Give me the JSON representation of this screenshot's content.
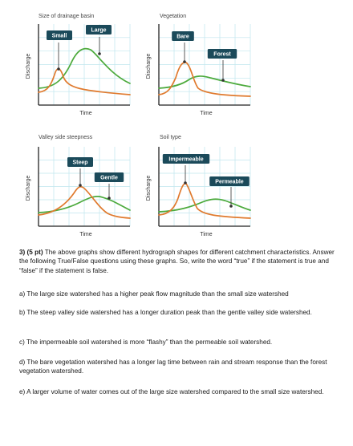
{
  "charts": [
    {
      "title": "Size of drainage basin",
      "xlabel": "Time",
      "ylabel": "Discharge",
      "labels": [
        {
          "text": "Small",
          "color": "#e07a2e"
        },
        {
          "text": "Large",
          "color": "#4caa3c"
        }
      ]
    },
    {
      "title": "Vegetation",
      "xlabel": "Time",
      "ylabel": "Discharge",
      "labels": [
        {
          "text": "Bare",
          "color": "#e07a2e"
        },
        {
          "text": "Forest",
          "color": "#4caa3c"
        }
      ]
    },
    {
      "title": "Valley side steepness",
      "xlabel": "Time",
      "ylabel": "Discharge",
      "labels": [
        {
          "text": "Steep",
          "color": "#e07a2e"
        },
        {
          "text": "Gentle",
          "color": "#4caa3c"
        }
      ]
    },
    {
      "title": "Soil type",
      "xlabel": "Time",
      "ylabel": "Discharge",
      "labels": [
        {
          "text": "Impermeable",
          "color": "#e07a2e"
        },
        {
          "text": "Permeable",
          "color": "#4caa3c"
        }
      ]
    }
  ],
  "colors": {
    "label_bg": "#1b4a5a",
    "grid": "#bfe6ee",
    "axis": "#222222",
    "orange": "#e07a2e",
    "green": "#4caa3c"
  },
  "question": {
    "number": "3) (5 pt)",
    "intro": " The above graphs show different hydrograph shapes for different catchment characteristics. Answer the following True/False questions using these graphs. So, write the word “true” if the statement is true and “false” if the statement is false.",
    "items": [
      "a) The large size watershed has a higher peak flow magnitude than the small size watershed",
      "b) The steep valley side watershed has a longer duration peak than the gentle valley side watershed.",
      "c) The impermeable soil watershed is more “flashy” than the permeable soil watershed.",
      "d) The bare vegetation watershed has a longer lag time between rain and stream response than the forest vegetation watershed.",
      "e) A larger volume of water comes out of the large size watershed compared to the small size watershed."
    ]
  }
}
